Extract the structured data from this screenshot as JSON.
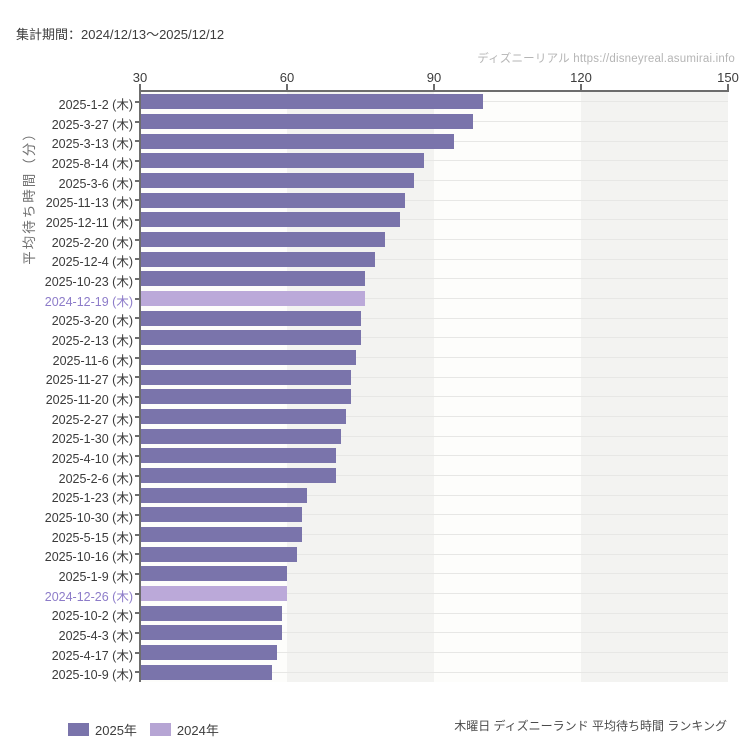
{
  "header": {
    "title": "集計期間：2024/12/13～2025/12/12",
    "watermark": "ディズニーリアル https://disneyreal.asumirai.info"
  },
  "footer": {
    "caption": "木曜日 ディズニーランド 平均待ち時間 ランキング"
  },
  "legend": [
    {
      "label": "2025年",
      "year": "2025",
      "color": "#7a74ab"
    },
    {
      "label": "2024年",
      "year": "2024",
      "color": "#b6a5d4"
    }
  ],
  "chart_data": {
    "type": "bar",
    "orientation": "horizontal",
    "title": "木曜日 ディズニーランド 平均待ち時間 ランキング",
    "xlabel": "",
    "ylabel": "平均待ち時間（分）",
    "xlim": [
      30,
      150
    ],
    "xticks": [
      30,
      60,
      90,
      120,
      150
    ],
    "grid": "vertical-alternating-bands-with-row-lines",
    "legend_position": "bottom-left",
    "colors": {
      "2025": "#7a74ab",
      "2024": "#bba9d9",
      "label_2024_text": "#8d7cc9",
      "label_text": "#3b3b3b",
      "band_gray": "#f3f3f1",
      "band_white": "#fdfdfb",
      "row_line": "#e7e7e5",
      "axis": "#6d6d6d"
    },
    "rows": [
      {
        "label": "2025-1-2 (木)",
        "value": 100,
        "year": "2025"
      },
      {
        "label": "2025-3-27 (木)",
        "value": 98,
        "year": "2025"
      },
      {
        "label": "2025-3-13 (木)",
        "value": 94,
        "year": "2025"
      },
      {
        "label": "2025-8-14 (木)",
        "value": 88,
        "year": "2025"
      },
      {
        "label": "2025-3-6 (木)",
        "value": 86,
        "year": "2025"
      },
      {
        "label": "2025-11-13 (木)",
        "value": 84,
        "year": "2025"
      },
      {
        "label": "2025-12-11 (木)",
        "value": 83,
        "year": "2025"
      },
      {
        "label": "2025-2-20 (木)",
        "value": 80,
        "year": "2025"
      },
      {
        "label": "2025-12-4 (木)",
        "value": 78,
        "year": "2025"
      },
      {
        "label": "2025-10-23 (木)",
        "value": 76,
        "year": "2025"
      },
      {
        "label": "2024-12-19 (木)",
        "value": 76,
        "year": "2024"
      },
      {
        "label": "2025-3-20 (木)",
        "value": 75,
        "year": "2025"
      },
      {
        "label": "2025-2-13 (木)",
        "value": 75,
        "year": "2025"
      },
      {
        "label": "2025-11-6 (木)",
        "value": 74,
        "year": "2025"
      },
      {
        "label": "2025-11-27 (木)",
        "value": 73,
        "year": "2025"
      },
      {
        "label": "2025-11-20 (木)",
        "value": 73,
        "year": "2025"
      },
      {
        "label": "2025-2-27 (木)",
        "value": 72,
        "year": "2025"
      },
      {
        "label": "2025-1-30 (木)",
        "value": 71,
        "year": "2025"
      },
      {
        "label": "2025-4-10 (木)",
        "value": 70,
        "year": "2025"
      },
      {
        "label": "2025-2-6 (木)",
        "value": 70,
        "year": "2025"
      },
      {
        "label": "2025-1-23 (木)",
        "value": 64,
        "year": "2025"
      },
      {
        "label": "2025-10-30 (木)",
        "value": 63,
        "year": "2025"
      },
      {
        "label": "2025-5-15 (木)",
        "value": 63,
        "year": "2025"
      },
      {
        "label": "2025-10-16 (木)",
        "value": 62,
        "year": "2025"
      },
      {
        "label": "2025-1-9 (木)",
        "value": 60,
        "year": "2025"
      },
      {
        "label": "2024-12-26 (木)",
        "value": 60,
        "year": "2024"
      },
      {
        "label": "2025-10-2 (木)",
        "value": 59,
        "year": "2025"
      },
      {
        "label": "2025-4-3 (木)",
        "value": 59,
        "year": "2025"
      },
      {
        "label": "2025-4-17 (木)",
        "value": 58,
        "year": "2025"
      },
      {
        "label": "2025-10-9 (木)",
        "value": 57,
        "year": "2025"
      }
    ]
  }
}
